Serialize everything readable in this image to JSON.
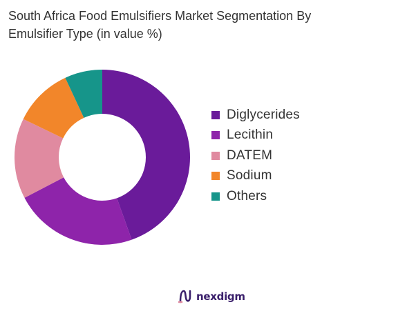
{
  "title_line1": "South Africa Food Emulsifiers Market Segmentation By",
  "title_line2": "Emulsifier Type (in value %)",
  "brand": {
    "name": "nexdigm",
    "logo_icon": "nexdigm-logo-icon",
    "color": "#3a1f6b"
  },
  "chart_data": {
    "type": "pie",
    "donut": true,
    "title": "South Africa Food Emulsifiers Market Segmentation By Emulsifier Type (in value %)",
    "categories": [
      "Diglycerides",
      "Lecithin",
      "DATEM",
      "Sodium",
      "Others"
    ],
    "values": [
      45,
      23,
      15,
      11,
      7
    ],
    "colors": [
      "#6a1b9a",
      "#8e24aa",
      "#e08aa0",
      "#f2862a",
      "#16958a"
    ],
    "legend": "right"
  }
}
